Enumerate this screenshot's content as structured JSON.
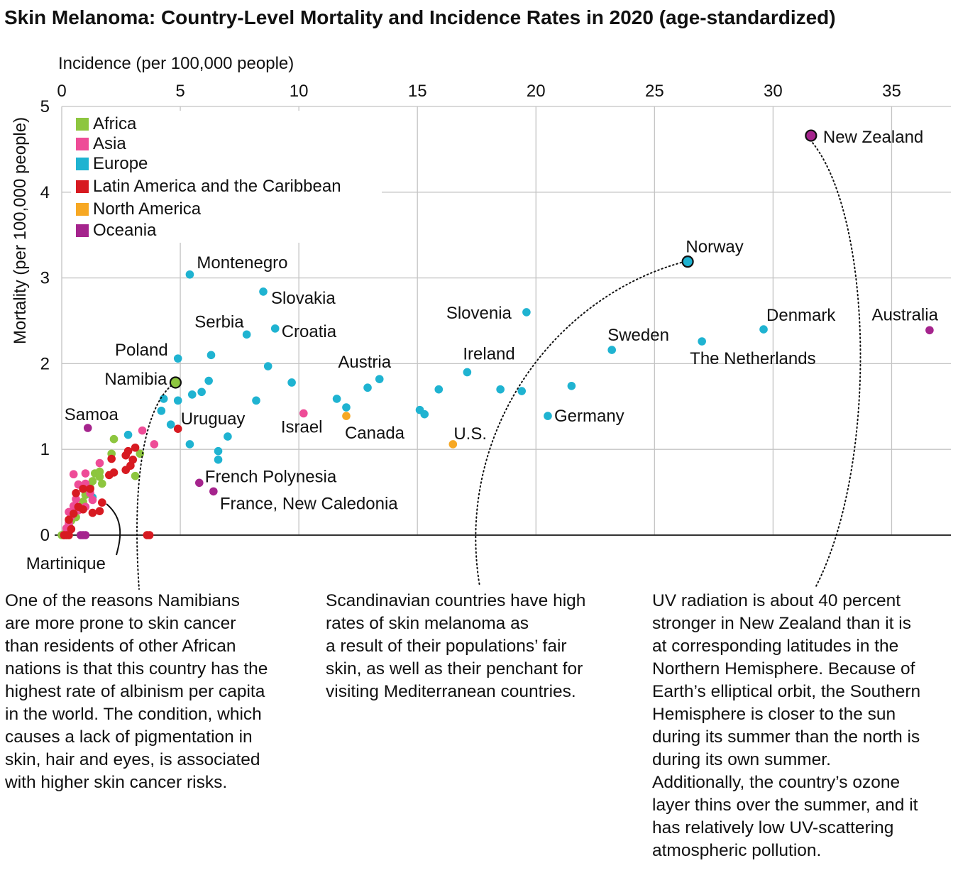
{
  "colors": {
    "Africa": "#8dc63f",
    "Asia": "#ee4c97",
    "Europe": "#1fb3d1",
    "Latin America and the Caribbean": "#d71a21",
    "North America": "#f7a823",
    "Oceania": "#a5248d"
  },
  "chart_data": {
    "type": "scatter",
    "title": "Skin Melanoma: Country-Level Mortality and Incidence Rates in 2020 (age-standardized)",
    "xlabel": "Incidence (per 100,000 people)",
    "ylabel": "Mortality (per 100,000 people)",
    "xlim": [
      0,
      37.5
    ],
    "ylim": [
      0,
      5
    ],
    "x_ticks": [
      "0",
      "5",
      "10",
      "15",
      "20",
      "25",
      "30",
      "35"
    ],
    "y_ticks": [
      "0",
      "1",
      "2",
      "3",
      "4",
      "5"
    ],
    "x_axis_position": "top",
    "grid": true,
    "legend_position": "top-left",
    "legend": [
      "Africa",
      "Asia",
      "Europe",
      "Latin America and the Caribbean",
      "North America",
      "Oceania"
    ],
    "labeled_points": [
      {
        "label": "New Zealand",
        "region": "Oceania",
        "x": 31.6,
        "y": 4.66,
        "highlight": true
      },
      {
        "label": "Norway",
        "region": "Europe",
        "x": 26.4,
        "y": 3.19,
        "highlight": true
      },
      {
        "label": "Namibia",
        "region": "Africa",
        "x": 4.8,
        "y": 1.78,
        "highlight": true
      },
      {
        "label": "Montenegro",
        "region": "Europe",
        "x": 5.4,
        "y": 3.04
      },
      {
        "label": "Slovakia",
        "region": "Europe",
        "x": 8.5,
        "y": 2.84
      },
      {
        "label": "Croatia",
        "region": "Europe",
        "x": 9.0,
        "y": 2.41
      },
      {
        "label": "Serbia",
        "region": "Europe",
        "x": 7.8,
        "y": 2.34
      },
      {
        "label": "Poland",
        "region": "Europe",
        "x": 4.9,
        "y": 2.06
      },
      {
        "label": "Slovenia",
        "region": "Europe",
        "x": 19.6,
        "y": 2.6
      },
      {
        "label": "Denmark",
        "region": "Europe",
        "x": 29.6,
        "y": 2.4
      },
      {
        "label": "Australia",
        "region": "Oceania",
        "x": 36.6,
        "y": 2.39
      },
      {
        "label": "Sweden",
        "region": "Europe",
        "x": 23.2,
        "y": 2.16
      },
      {
        "label": "The Netherlands",
        "region": "Europe",
        "x": 27.0,
        "y": 2.26
      },
      {
        "label": "Ireland",
        "region": "Europe",
        "x": 17.1,
        "y": 1.9
      },
      {
        "label": "Austria",
        "region": "Europe",
        "x": 13.4,
        "y": 1.82
      },
      {
        "label": "Germany",
        "region": "Europe",
        "x": 20.5,
        "y": 1.39
      },
      {
        "label": "U.S.",
        "region": "North America",
        "x": 16.5,
        "y": 1.06
      },
      {
        "label": "Canada",
        "region": "North America",
        "x": 12.0,
        "y": 1.39
      },
      {
        "label": "Israel",
        "region": "Asia",
        "x": 10.2,
        "y": 1.42
      },
      {
        "label": "Uruguay",
        "region": "Latin America and the Caribbean",
        "x": 4.9,
        "y": 1.24
      },
      {
        "label": "Samoa",
        "region": "Oceania",
        "x": 1.1,
        "y": 1.25
      },
      {
        "label": "French Polynesia",
        "region": "Oceania",
        "x": 5.8,
        "y": 0.61
      },
      {
        "label": "France, New Caledonia",
        "region": "Oceania",
        "x": 6.4,
        "y": 0.51
      },
      {
        "label": "Martinique",
        "region": "Latin America and the Caribbean",
        "x": 1.7,
        "y": 0.38
      }
    ],
    "other_points": [
      {
        "region": "Europe",
        "points": [
          [
            6.3,
            2.1
          ],
          [
            6.2,
            1.8
          ],
          [
            5.9,
            1.67
          ],
          [
            5.5,
            1.64
          ],
          [
            4.9,
            1.57
          ],
          [
            4.3,
            1.59
          ],
          [
            4.2,
            1.45
          ],
          [
            4.6,
            1.29
          ],
          [
            5.4,
            1.06
          ],
          [
            2.8,
            1.17
          ],
          [
            8.7,
            1.97
          ],
          [
            9.7,
            1.78
          ],
          [
            8.2,
            1.57
          ],
          [
            11.6,
            1.59
          ],
          [
            12.0,
            1.49
          ],
          [
            12.9,
            1.72
          ],
          [
            15.1,
            1.46
          ],
          [
            15.3,
            1.41
          ],
          [
            15.9,
            1.7
          ],
          [
            18.5,
            1.7
          ],
          [
            19.4,
            1.68
          ],
          [
            21.5,
            1.74
          ],
          [
            7.0,
            1.15
          ],
          [
            6.6,
            0.98
          ],
          [
            6.6,
            0.88
          ],
          [
            1.3,
            0.44
          ]
        ]
      },
      {
        "region": "Africa",
        "points": [
          [
            0,
            0
          ],
          [
            0.1,
            0
          ],
          [
            0.2,
            0
          ],
          [
            0.3,
            0
          ],
          [
            0.2,
            0.05
          ],
          [
            0.3,
            0.11
          ],
          [
            0.4,
            0.17
          ],
          [
            0.5,
            0.24
          ],
          [
            0.6,
            0.21
          ],
          [
            0.7,
            0.3
          ],
          [
            0.9,
            0.39
          ],
          [
            1.0,
            0.47
          ],
          [
            1.1,
            0.52
          ],
          [
            1.2,
            0.55
          ],
          [
            1.3,
            0.63
          ],
          [
            1.4,
            0.72
          ],
          [
            1.6,
            0.74
          ],
          [
            1.7,
            0.6
          ],
          [
            1.6,
            0.68
          ],
          [
            2.1,
            0.95
          ],
          [
            2.2,
            1.12
          ],
          [
            3.1,
            0.69
          ],
          [
            3.3,
            0.95
          ]
        ]
      },
      {
        "region": "Asia",
        "points": [
          [
            0.1,
            0
          ],
          [
            0.2,
            0.08
          ],
          [
            0.3,
            0.14
          ],
          [
            0.4,
            0.22
          ],
          [
            0.5,
            0.34
          ],
          [
            0.6,
            0.42
          ],
          [
            0.7,
            0.29
          ],
          [
            0.5,
            0.71
          ],
          [
            0.7,
            0.59
          ],
          [
            1.0,
            0.6
          ],
          [
            1.0,
            0.72
          ],
          [
            1.0,
            0.33
          ],
          [
            1.2,
            0.49
          ],
          [
            1.3,
            0.41
          ],
          [
            1.6,
            0.84
          ],
          [
            3.9,
            1.06
          ],
          [
            3.4,
            1.22
          ],
          [
            0.3,
            0.27
          ]
        ]
      },
      {
        "region": "Latin America and the Caribbean",
        "points": [
          [
            0.1,
            0
          ],
          [
            0.2,
            0
          ],
          [
            0.3,
            0
          ],
          [
            0.4,
            0.07
          ],
          [
            0.3,
            0.18
          ],
          [
            0.5,
            0.25
          ],
          [
            0.7,
            0.33
          ],
          [
            0.6,
            0.49
          ],
          [
            0.9,
            0.54
          ],
          [
            1.2,
            0.54
          ],
          [
            1.3,
            0.26
          ],
          [
            1.6,
            0.28
          ],
          [
            2.0,
            0.7
          ],
          [
            2.1,
            0.89
          ],
          [
            2.2,
            0.73
          ],
          [
            2.7,
            0.76
          ],
          [
            2.7,
            0.93
          ],
          [
            2.8,
            0.98
          ],
          [
            2.9,
            0.81
          ],
          [
            3.0,
            0.88
          ],
          [
            3.1,
            1.02
          ],
          [
            3.6,
            0
          ],
          [
            3.7,
            0
          ],
          [
            0.9,
            0.3
          ]
        ]
      },
      {
        "region": "Oceania",
        "points": [
          [
            0.8,
            0
          ],
          [
            0.9,
            0
          ],
          [
            1.0,
            0
          ]
        ]
      }
    ]
  },
  "notes": {
    "left": [
      "One of the reasons Namibians",
      "are more prone to skin cancer",
      "than residents of other African",
      "nations is that this country has the",
      "highest rate of albinism per capita",
      "in the world. The condition, which",
      "causes a lack of pigmentation in",
      "skin, hair and eyes, is associated",
      "with higher skin cancer risks."
    ],
    "middle": [
      "Scandinavian countries have high",
      "rates of skin melanoma as",
      "a result of their populations’ fair",
      "skin, as well as their penchant for",
      "visiting Mediterranean countries."
    ],
    "right": [
      "UV radiation is about 40 percent",
      "stronger in New Zealand than it is",
      "at corresponding latitudes in the",
      "Northern Hemisphere. Because of",
      "Earth’s elliptical orbit, the Southern",
      "Hemisphere is closer to the sun",
      "during its summer than the north is",
      "during its own summer.",
      "Additionally, the country’s ozone",
      "layer thins over the summer, and it",
      "has relatively low UV-scattering",
      "atmospheric pollution."
    ]
  }
}
